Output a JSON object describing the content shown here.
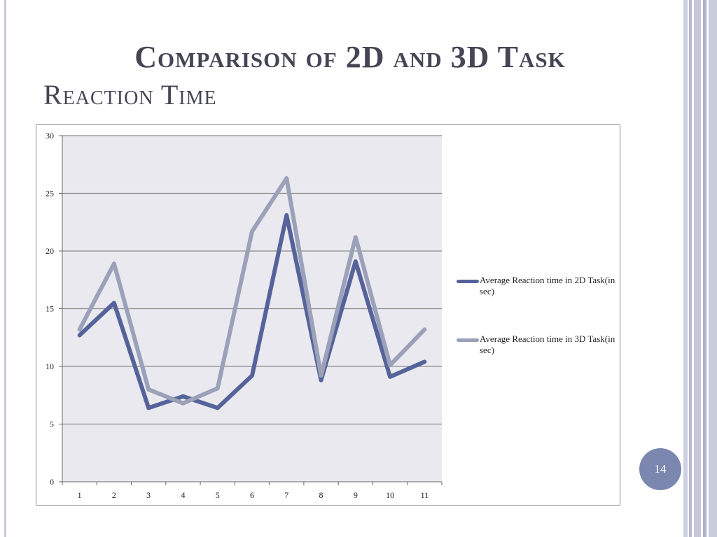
{
  "slide": {
    "title_line1": "Comparison of 2D and 3D Task",
    "title_line2": "Reaction Time",
    "page_number": "14"
  },
  "colors": {
    "series_2d": "#55639a",
    "series_3d": "#9aa1b8",
    "plot_bg": "#eae9ef",
    "gridline": "#8a8a8a",
    "badge": "#7b87ae"
  },
  "chart_data": {
    "type": "line",
    "title": "",
    "xlabel": "",
    "ylabel": "",
    "categories": [
      "1",
      "2",
      "3",
      "4",
      "5",
      "6",
      "7",
      "8",
      "9",
      "10",
      "11"
    ],
    "ylim": [
      0,
      30
    ],
    "yticks": [
      "0",
      "5",
      "10",
      "15",
      "20",
      "25",
      "30"
    ],
    "grid": true,
    "legend_position": "right",
    "series": [
      {
        "name": "Average Reaction time in 2D Task(in sec)",
        "values": [
          12.7,
          15.5,
          6.4,
          7.4,
          6.4,
          9.2,
          23.1,
          8.8,
          19.1,
          9.1,
          10.4
        ]
      },
      {
        "name": "Average Reaction time in 3D Task(in sec)",
        "values": [
          13.2,
          18.9,
          8.0,
          6.8,
          8.1,
          21.7,
          26.3,
          9.2,
          21.2,
          10.1,
          13.2
        ]
      }
    ]
  }
}
